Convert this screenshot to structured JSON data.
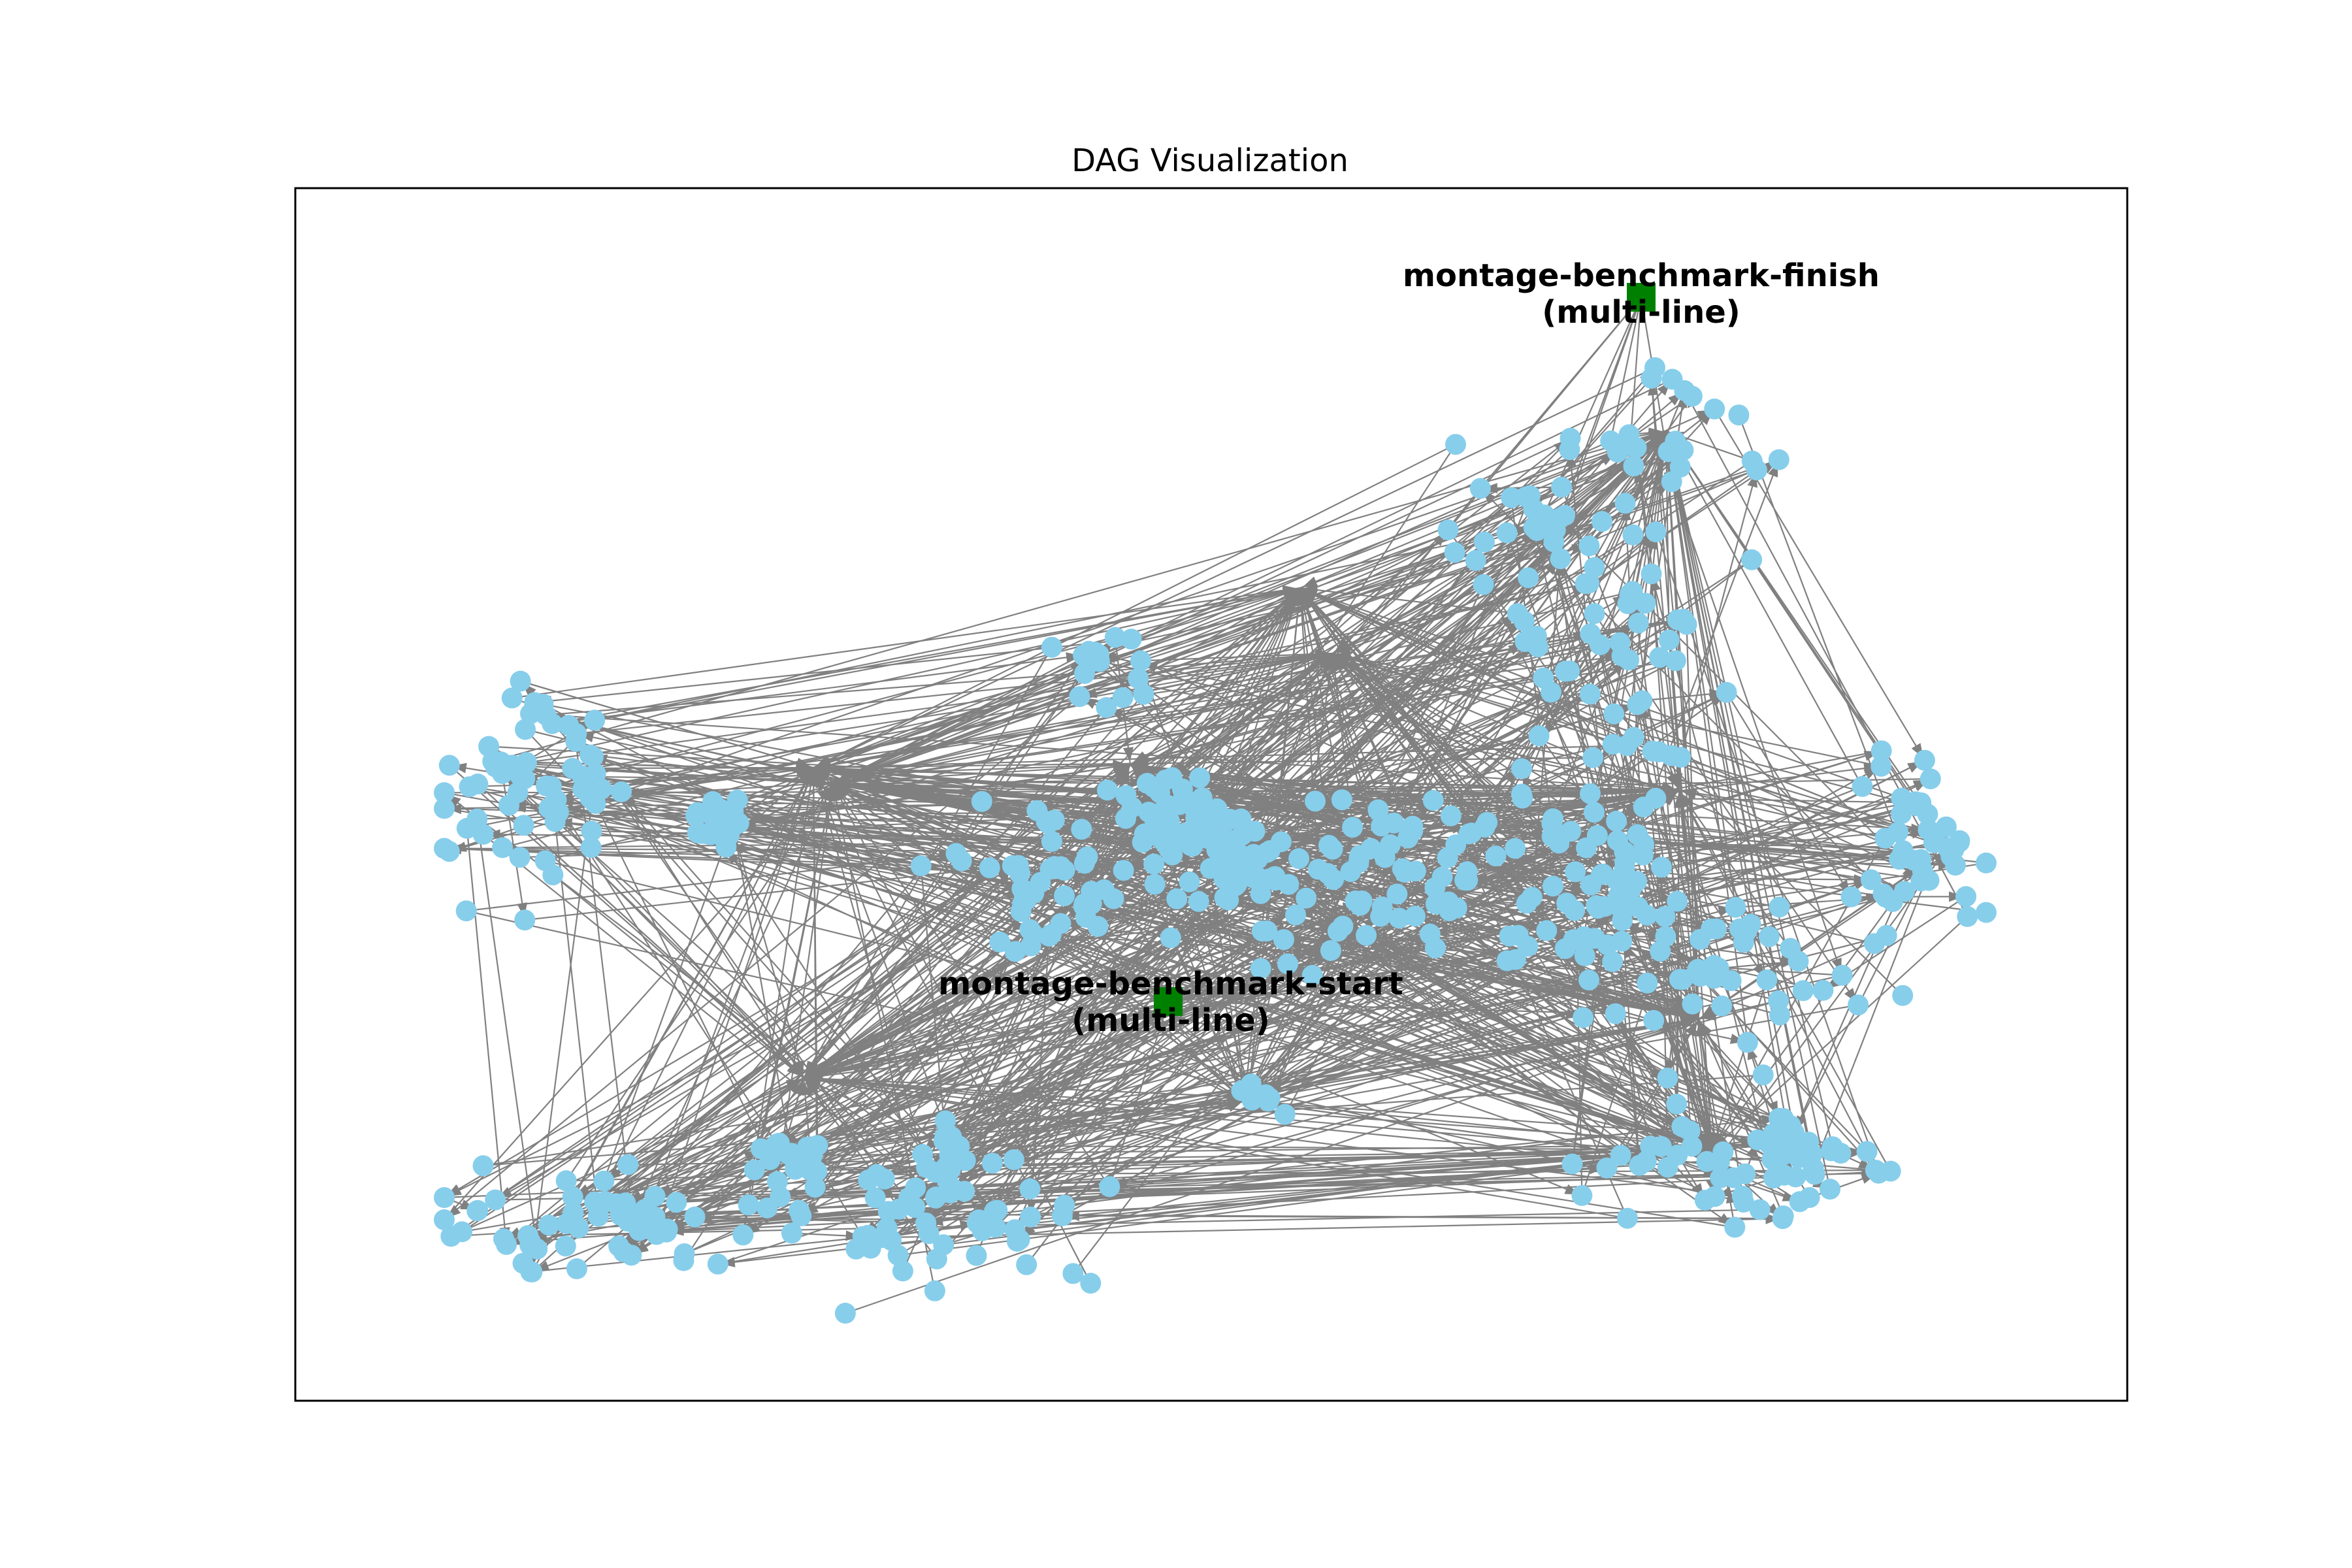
{
  "figure": {
    "title": "DAG Visualization"
  },
  "graph": {
    "node_color": "#87CEEB",
    "special_node_color": "#008000",
    "edge_color": "#808080",
    "special_nodes": [
      {
        "id": "start",
        "label_line1": "montage-benchmark-start",
        "label_line2": "(multi-line)"
      },
      {
        "id": "finish",
        "label_line1": "montage-benchmark-finish",
        "label_line2": "(multi-line)"
      }
    ]
  }
}
